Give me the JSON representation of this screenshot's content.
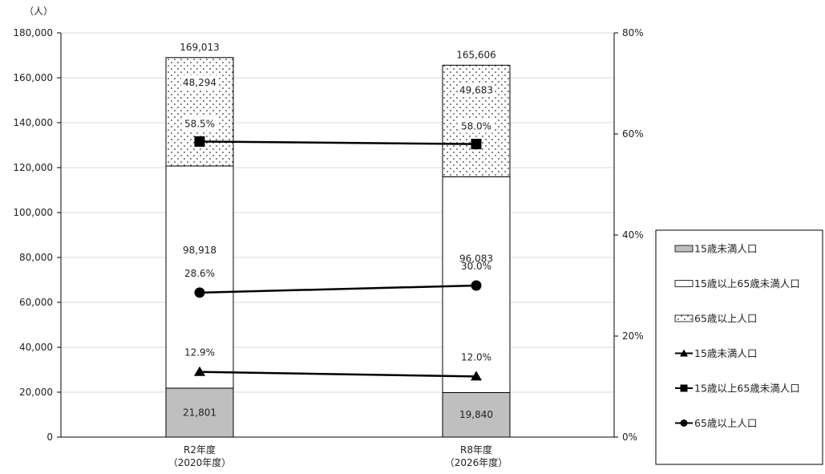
{
  "chart_data": {
    "type": "bar",
    "stacked": true,
    "categories": [
      "R2年度\n（2020年度）",
      "R8年度\n（2026年度）"
    ],
    "unit": "（人）",
    "y_left": {
      "min": 0,
      "max": 180000,
      "step": 20000,
      "ticks": [
        "0",
        "20,000",
        "40,000",
        "60,000",
        "80,000",
        "100,000",
        "120,000",
        "140,000",
        "160,000",
        "180,000"
      ]
    },
    "y_right": {
      "min": 0,
      "max": 80,
      "step": 20,
      "ticks": [
        "0%",
        "20%",
        "40%",
        "60%",
        "80%"
      ]
    },
    "grid": true,
    "legend_position": "right",
    "bar_series": [
      {
        "name": "15歳未満人口",
        "values": [
          21801,
          19840
        ],
        "labels": [
          "21,801",
          "19,840"
        ],
        "pattern": "gray"
      },
      {
        "name": "15歳以上65歳未満人口",
        "values": [
          98918,
          96083
        ],
        "labels": [
          "98,918",
          "96,083"
        ],
        "pattern": "white"
      },
      {
        "name": "65歳以上人口",
        "values": [
          48294,
          49683
        ],
        "labels": [
          "48,294",
          "49,683"
        ],
        "pattern": "dots"
      }
    ],
    "totals": [
      169013,
      165606
    ],
    "total_labels": [
      "169,013",
      "165,606"
    ],
    "line_series": [
      {
        "name": "15歳未満人口",
        "values": [
          12.9,
          12.0
        ],
        "labels": [
          "12.9%",
          "12.0%"
        ],
        "marker": "triangle"
      },
      {
        "name": "15歳以上65歳未満人口",
        "values": [
          58.5,
          58.0
        ],
        "labels": [
          "58.5%",
          "58.0%"
        ],
        "marker": "square"
      },
      {
        "name": "65歳以上人口",
        "values": [
          28.6,
          30.0
        ],
        "labels": [
          "28.6%",
          "30.0%"
        ],
        "marker": "circle"
      }
    ],
    "colors": {
      "gray": "#bfbfbf",
      "line": "#000000",
      "grid": "#d9d9d9",
      "axis": "#000000"
    }
  }
}
